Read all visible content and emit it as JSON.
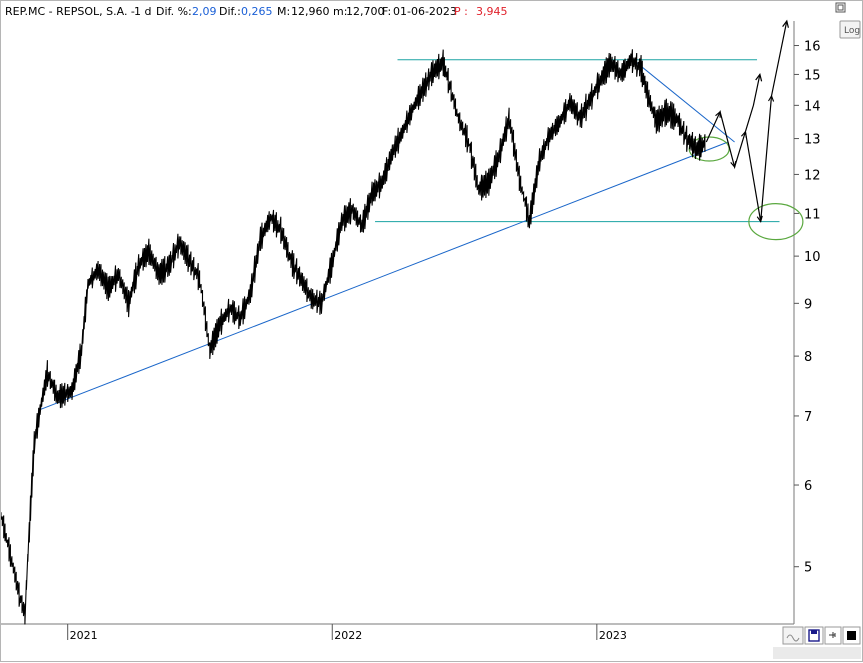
{
  "header": {
    "symbol": "REP.MC - REPSOL,  S.A. - ",
    "period": "1 d",
    "dif_pct_label": "Dif. %:",
    "dif_pct_value": "2,09",
    "dif_label": "Dif.:",
    "dif_value": "0,265",
    "max_label": "M:",
    "max_value": "12,960",
    "min_label": "m:",
    "min_value": "12,700",
    "date_label": "F:",
    "date_value": "01-06-2023",
    "p_label": "P :",
    "p_value": "3,945"
  },
  "controls": {
    "log_label": "Log",
    "maximize_icon": "maximize-icon",
    "wave_icon": "wave-icon",
    "save_icon": "save-icon",
    "pin_icon": "pin-icon",
    "close_icon": "close-icon"
  },
  "colors": {
    "price": "#000000",
    "trendline": "#1a66c9",
    "channel": "#1aa3a3",
    "circle": "#5aa83f",
    "header_blue": "#1a5fd6",
    "header_red": "#e0202a"
  },
  "chart_data": {
    "type": "line",
    "title": "REP.MC - REPSOL, S.A. - 1 d",
    "scale": "log",
    "ylim": [
      4.4,
      16.9
    ],
    "y_ticks": [
      "16",
      "15",
      "14",
      "13",
      "12",
      "11",
      "10",
      "9",
      "8",
      "7",
      "6",
      "5"
    ],
    "x_ticks": [
      "2021",
      "2022",
      "2023"
    ],
    "xlim": [
      "2020-10-01",
      "2023-09-30"
    ],
    "grid": false,
    "series": [
      {
        "role": "price",
        "x": [
          "2020-10-01",
          "2020-10-12",
          "2020-10-26",
          "2020-11-03",
          "2020-11-09",
          "2020-11-16",
          "2020-11-24",
          "2020-12-04",
          "2020-12-18",
          "2021-01-07",
          "2021-01-20",
          "2021-01-29",
          "2021-02-12",
          "2021-02-26",
          "2021-03-12",
          "2021-03-26",
          "2021-04-09",
          "2021-04-23",
          "2021-05-07",
          "2021-05-21",
          "2021-06-04",
          "2021-06-18",
          "2021-07-02",
          "2021-07-16",
          "2021-07-30",
          "2021-08-13",
          "2021-08-27",
          "2021-09-10",
          "2021-09-24",
          "2021-10-08",
          "2021-10-22",
          "2021-11-05",
          "2021-11-19",
          "2021-12-03",
          "2021-12-17",
          "2021-12-31",
          "2022-01-14",
          "2022-01-28",
          "2022-02-11",
          "2022-02-25",
          "2022-03-11",
          "2022-03-25",
          "2022-04-08",
          "2022-04-22",
          "2022-05-06",
          "2022-05-20",
          "2022-06-03",
          "2022-06-10",
          "2022-06-24",
          "2022-07-08",
          "2022-07-22",
          "2022-08-05",
          "2022-08-19",
          "2022-09-02",
          "2022-09-16",
          "2022-09-30",
          "2022-10-14",
          "2022-10-28",
          "2022-11-11",
          "2022-11-25",
          "2022-12-09",
          "2022-12-23",
          "2023-01-06",
          "2023-01-20",
          "2023-02-03",
          "2023-02-17",
          "2023-03-03",
          "2023-03-10",
          "2023-03-24",
          "2023-04-07",
          "2023-04-21",
          "2023-05-05",
          "2023-05-19",
          "2023-06-01"
        ],
        "y": [
          5.6,
          5.2,
          4.7,
          4.5,
          5.4,
          6.6,
          7.1,
          7.7,
          7.3,
          7.4,
          8.1,
          9.4,
          9.7,
          9.3,
          9.6,
          9.0,
          9.8,
          10.1,
          9.6,
          9.8,
          10.3,
          9.9,
          9.5,
          8.1,
          8.6,
          8.9,
          8.7,
          9.2,
          10.4,
          10.9,
          10.6,
          9.9,
          9.5,
          9.1,
          9.0,
          9.8,
          10.8,
          11.1,
          10.7,
          11.5,
          11.8,
          12.6,
          13.2,
          13.9,
          14.5,
          15.1,
          15.4,
          14.8,
          13.6,
          12.9,
          11.6,
          11.8,
          12.5,
          13.6,
          11.9,
          10.8,
          12.4,
          13.1,
          13.5,
          14.1,
          13.6,
          14.2,
          14.8,
          15.4,
          15.0,
          15.5,
          15.2,
          14.5,
          13.5,
          13.8,
          13.6,
          13.0,
          12.7,
          12.9
        ]
      },
      {
        "role": "projection",
        "x": [
          "2023-06-01",
          "2023-06-20",
          "2023-07-10",
          "2023-07-25",
          "2023-08-15",
          "2023-08-30",
          "2023-09-20"
        ],
        "y": [
          12.9,
          13.8,
          12.2,
          13.2,
          10.8,
          14.3,
          16.9
        ]
      },
      {
        "role": "projection-alt",
        "x": [
          "2023-07-25",
          "2023-08-05",
          "2023-08-14"
        ],
        "y": [
          13.2,
          14.0,
          15.0
        ]
      }
    ],
    "annotations": {
      "channel_top": {
        "y": 15.5,
        "x": [
          "2022-04-01",
          "2023-08-10"
        ]
      },
      "channel_bottom": {
        "y": 10.8,
        "x": [
          "2022-03-01",
          "2023-09-10"
        ]
      },
      "trendline": {
        "x": [
          "2020-11-24",
          "2023-07-01"
        ],
        "y": [
          7.1,
          12.9
        ]
      },
      "falling_line": {
        "x": [
          "2023-02-20",
          "2023-07-10"
        ],
        "y": [
          15.5,
          12.9
        ]
      },
      "circles": [
        {
          "x": "2023-06-05",
          "y": 12.7
        },
        {
          "x": "2023-09-05",
          "y": 10.8
        }
      ]
    }
  }
}
